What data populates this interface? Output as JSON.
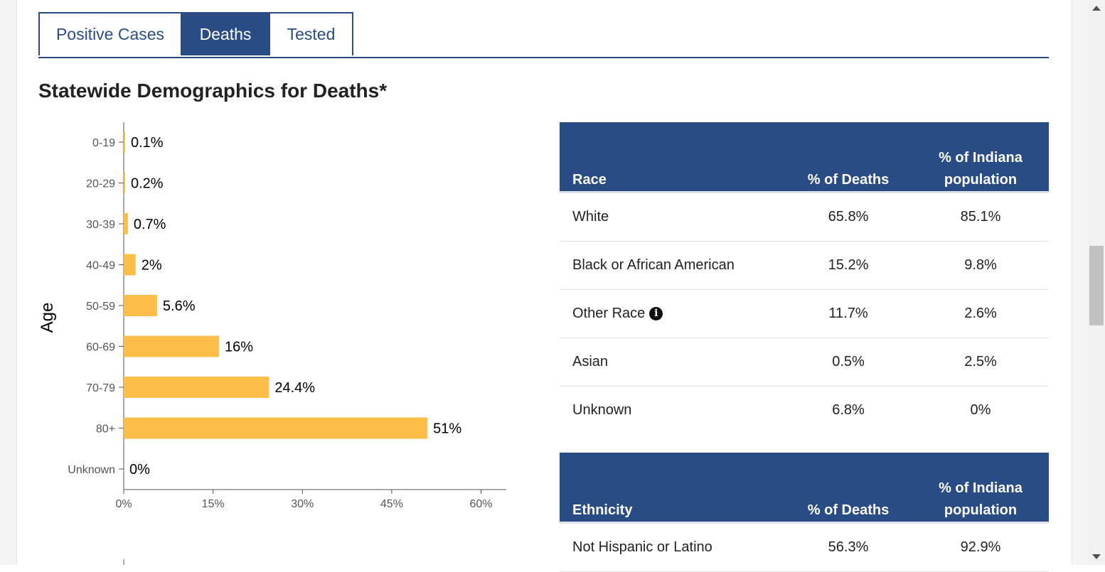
{
  "tabs": [
    {
      "label": "Positive Cases",
      "active": false
    },
    {
      "label": "Deaths",
      "active": true
    },
    {
      "label": "Tested",
      "active": false
    }
  ],
  "section_title": "Statewide Demographics for Deaths*",
  "colors": {
    "accent": "#2a4c84",
    "bar": "#fcbd49"
  },
  "chart_data": {
    "type": "bar",
    "orientation": "horizontal",
    "ylabel": "Age",
    "xlabel": "",
    "categories": [
      "0-19",
      "20-29",
      "30-39",
      "40-49",
      "50-59",
      "60-69",
      "70-79",
      "80+",
      "Unknown"
    ],
    "values": [
      0.1,
      0.2,
      0.7,
      2,
      5.6,
      16,
      24.4,
      51,
      0
    ],
    "value_labels": [
      "0.1%",
      "0.2%",
      "0.7%",
      "2%",
      "5.6%",
      "16%",
      "24.4%",
      "51%",
      "0%"
    ],
    "xlim": [
      0,
      64
    ],
    "xticks": [
      0,
      15,
      30,
      45,
      60
    ],
    "xtick_labels": [
      "0%",
      "15%",
      "30%",
      "45%",
      "60%"
    ],
    "grid": false
  },
  "race_table": {
    "headers": [
      "Race",
      "% of Deaths",
      "% of Indiana population"
    ],
    "rows": [
      {
        "name": "White",
        "deaths": "65.8%",
        "population": "85.1%",
        "info": false
      },
      {
        "name": "Black or African American",
        "deaths": "15.2%",
        "population": "9.8%",
        "info": false
      },
      {
        "name": "Other Race",
        "deaths": "11.7%",
        "population": "2.6%",
        "info": true
      },
      {
        "name": "Asian",
        "deaths": "0.5%",
        "population": "2.5%",
        "info": false
      },
      {
        "name": "Unknown",
        "deaths": "6.8%",
        "population": "0%",
        "info": false
      }
    ]
  },
  "ethnicity_table": {
    "headers": [
      "Ethnicity",
      "% of Deaths",
      "% of Indiana population"
    ],
    "rows": [
      {
        "name": "Not Hispanic or Latino",
        "deaths": "56.3%",
        "population": "92.9%"
      }
    ]
  },
  "icons": {
    "info": "info-circle-icon",
    "info_glyph": "i"
  }
}
